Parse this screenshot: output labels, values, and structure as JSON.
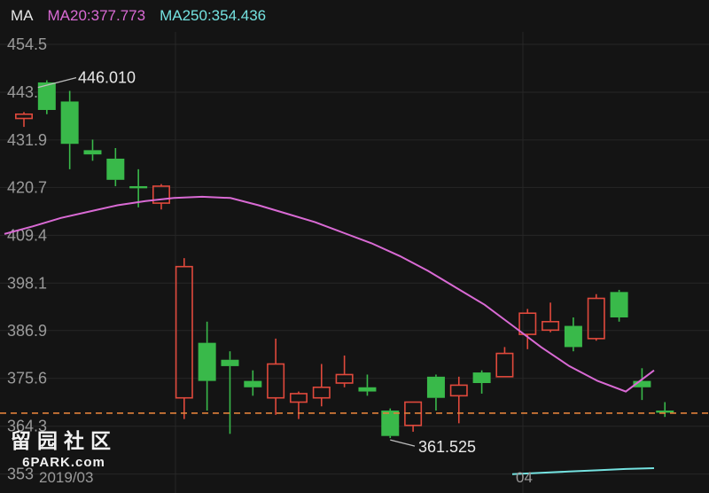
{
  "legend": {
    "indicator": "MA",
    "ma20": "MA20:377.773",
    "ma250": "MA250:354.436"
  },
  "watermark": {
    "cn": "留园社区",
    "en": "6PARK.com"
  },
  "colors": {
    "background": "#141414",
    "grid": "#262626",
    "up": "#e0493c",
    "down": "#39b94a",
    "ma20": "#d96ad4",
    "ma250": "#74e2e0",
    "current_price_line": "#e0803a",
    "axis_text": "#9a9a9a"
  },
  "chart_data": {
    "type": "candlestick",
    "y_ticks": [
      "454.5",
      "443.2",
      "431.9",
      "420.7",
      "409.4",
      "398.1",
      "386.9",
      "375.6",
      "364.3",
      "353"
    ],
    "y_range": [
      350,
      457
    ],
    "x_labels": [
      "2019/03",
      "04"
    ],
    "high_annotation": "446.010",
    "low_annotation": "361.525",
    "current_price_approx": 367.4,
    "candles": [
      {
        "o": 437.0,
        "h": 438.5,
        "l": 435.0,
        "c": 438.0
      },
      {
        "o": 445.5,
        "h": 446.0,
        "l": 438.0,
        "c": 439.0
      },
      {
        "o": 441.0,
        "h": 443.5,
        "l": 425.0,
        "c": 431.0
      },
      {
        "o": 429.5,
        "h": 432.0,
        "l": 427.0,
        "c": 428.5
      },
      {
        "o": 427.5,
        "h": 430.0,
        "l": 421.0,
        "c": 422.5
      },
      {
        "o": 421.0,
        "h": 425.0,
        "l": 416.0,
        "c": 420.5
      },
      {
        "o": 417.0,
        "h": 421.5,
        "l": 415.5,
        "c": 421.0
      },
      {
        "o": 371.0,
        "h": 404.0,
        "l": 366.0,
        "c": 402.0
      },
      {
        "o": 384.0,
        "h": 389.0,
        "l": 368.0,
        "c": 375.0
      },
      {
        "o": 380.0,
        "h": 382.0,
        "l": 362.5,
        "c": 378.5
      },
      {
        "o": 375.0,
        "h": 377.5,
        "l": 371.5,
        "c": 373.5
      },
      {
        "o": 371.0,
        "h": 385.0,
        "l": 367.0,
        "c": 379.0
      },
      {
        "o": 370.0,
        "h": 372.5,
        "l": 366.0,
        "c": 372.0
      },
      {
        "o": 371.0,
        "h": 379.0,
        "l": 369.0,
        "c": 373.5
      },
      {
        "o": 374.5,
        "h": 381.0,
        "l": 373.5,
        "c": 376.5
      },
      {
        "o": 373.5,
        "h": 376.5,
        "l": 371.5,
        "c": 372.5
      },
      {
        "o": 368.0,
        "h": 368.5,
        "l": 361.5,
        "c": 362.0
      },
      {
        "o": 364.5,
        "h": 370.0,
        "l": 363.0,
        "c": 370.0
      },
      {
        "o": 376.0,
        "h": 376.5,
        "l": 368.0,
        "c": 371.0
      },
      {
        "o": 371.5,
        "h": 376.0,
        "l": 365.0,
        "c": 374.0
      },
      {
        "o": 377.0,
        "h": 377.5,
        "l": 372.0,
        "c": 374.5
      },
      {
        "o": 376.0,
        "h": 383.0,
        "l": 376.0,
        "c": 381.5
      },
      {
        "o": 386.0,
        "h": 392.0,
        "l": 382.5,
        "c": 391.0
      },
      {
        "o": 387.0,
        "h": 393.5,
        "l": 386.5,
        "c": 389.0
      },
      {
        "o": 388.0,
        "h": 390.0,
        "l": 382.0,
        "c": 383.0
      },
      {
        "o": 385.0,
        "h": 395.5,
        "l": 384.5,
        "c": 394.5
      },
      {
        "o": 396.0,
        "h": 396.5,
        "l": 389.0,
        "c": 390.0
      },
      {
        "o": 375.0,
        "h": 378.0,
        "l": 370.5,
        "c": 373.5
      },
      {
        "o": 368.0,
        "h": 370.0,
        "l": 366.5,
        "c": 367.5
      }
    ],
    "ma20": [
      409.7,
      411.5,
      413.5,
      415.0,
      416.5,
      417.5,
      418.2,
      418.5,
      418.2,
      416.5,
      414.5,
      412.5,
      410.0,
      407.5,
      404.5,
      401.0,
      397.0,
      393.0,
      388.0,
      383.0,
      378.5,
      375.0,
      372.5,
      377.5
    ],
    "ma250": [
      353.0,
      353.3,
      353.6,
      353.9,
      354.2,
      354.4
    ]
  }
}
